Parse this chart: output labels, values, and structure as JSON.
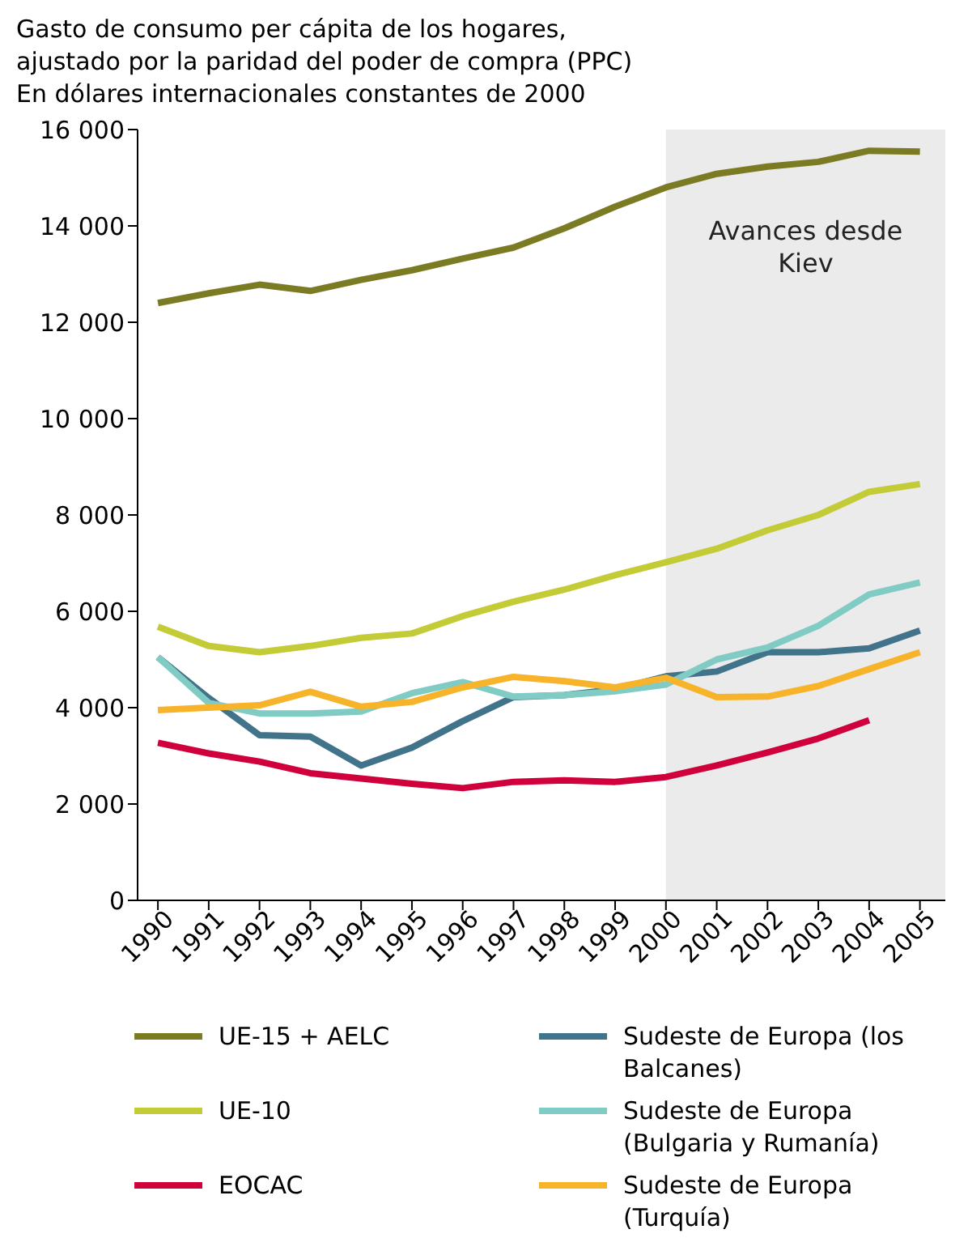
{
  "chart_data": {
    "type": "line",
    "title": "Gasto de consumo per cápita de los hogares,\najustado por la paridad del poder de compra (PPC)\nEn dólares internacionales constantes de 2000",
    "x": [
      1990,
      1991,
      1992,
      1993,
      1994,
      1995,
      1996,
      1997,
      1998,
      1999,
      2000,
      2001,
      2002,
      2003,
      2004,
      2005
    ],
    "xlim": [
      1989.6,
      2005.5
    ],
    "xticks": [
      1990,
      1991,
      1992,
      1993,
      1994,
      1995,
      1996,
      1997,
      1998,
      1999,
      2000,
      2001,
      2002,
      2003,
      2004,
      2005
    ],
    "ylim": [
      0,
      16000
    ],
    "yticks": [
      {
        "value": 0,
        "label": "0"
      },
      {
        "value": 2000,
        "label": "2 000"
      },
      {
        "value": 4000,
        "label": "4 000"
      },
      {
        "value": 6000,
        "label": "6 000"
      },
      {
        "value": 8000,
        "label": "8 000"
      },
      {
        "value": 10000,
        "label": "10 000"
      },
      {
        "value": 12000,
        "label": "12 000"
      },
      {
        "value": 14000,
        "label": "14 000"
      },
      {
        "value": 16000,
        "label": "16 000"
      }
    ],
    "series": [
      {
        "name": "UE-15 + AELC",
        "color": "#7a7b22",
        "values": [
          12400,
          12600,
          12780,
          12650,
          12880,
          13080,
          13320,
          13550,
          13950,
          14400,
          14800,
          15080,
          15230,
          15330,
          15560,
          15540
        ]
      },
      {
        "name": "Sudeste de Europa (los Balcanes)",
        "color": "#41738a",
        "values": [
          5050,
          4200,
          3430,
          3400,
          2800,
          3170,
          3720,
          4220,
          4260,
          4380,
          4650,
          4750,
          5150,
          5150,
          5230,
          5600
        ]
      },
      {
        "name": "UE-10",
        "color": "#c3cb36",
        "values": [
          5680,
          5280,
          5150,
          5280,
          5450,
          5540,
          5900,
          6200,
          6450,
          6750,
          7020,
          7300,
          7680,
          8000,
          8480,
          8640
        ]
      },
      {
        "name": "Sudeste de Europa (Bulgaria y Rumanía)",
        "color": "#80cbc4",
        "values": [
          5050,
          4100,
          3880,
          3880,
          3920,
          4300,
          4530,
          4230,
          4260,
          4340,
          4480,
          5000,
          5250,
          5700,
          6350,
          6600
        ]
      },
      {
        "name": "EOCAC",
        "color": "#d0003c",
        "values": [
          3270,
          3050,
          2880,
          2640,
          2530,
          2420,
          2330,
          2460,
          2490,
          2460,
          2560,
          2800,
          3070,
          3360,
          3740,
          null
        ]
      },
      {
        "name": "Sudeste de Europa (Turquía)",
        "color": "#f7b42a",
        "values": [
          3950,
          4000,
          4050,
          4330,
          4020,
          4120,
          4420,
          4640,
          4550,
          4420,
          4620,
          4220,
          4230,
          4450,
          4800,
          5150
        ]
      }
    ],
    "bands": [
      {
        "axis": "x",
        "from": 2000,
        "to": 2005.5,
        "label": "Avances desde\nKiev",
        "color": "#ebebeb"
      }
    ],
    "legend": "bottom",
    "marker": "none",
    "line_style": "solid"
  }
}
